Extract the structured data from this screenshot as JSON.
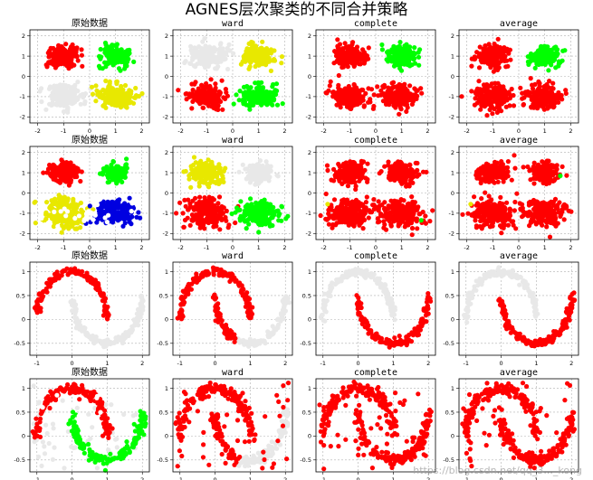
{
  "figure": {
    "title": "AGNES层次聚类的不同合并策略",
    "watermark": "https://blog.csdn.net/qq_3..._kong"
  },
  "colors": {
    "gray": "#e8e8e8",
    "red": "#ff0000",
    "green": "#00ff00",
    "yellow": "#e8e800",
    "blue": "#0000e0",
    "white": "#ffffff",
    "grid": "#b0b0b0"
  },
  "chart_data": [
    {
      "type": "scatter",
      "title": "原始数据",
      "xlim": [
        -2.3,
        2.3
      ],
      "ylim": [
        -2.3,
        2.3
      ],
      "xticks": [
        -2,
        -1,
        0,
        1,
        2
      ],
      "yticks": [
        -2,
        -1,
        0,
        1,
        2
      ],
      "grid": true,
      "series": [
        {
          "color": "gray",
          "shape": "blob",
          "center": [
            -1,
            -1
          ],
          "spread": [
            0.35,
            0.3
          ],
          "count": 180
        },
        {
          "color": "yellow",
          "shape": "blob",
          "center": [
            1,
            -1
          ],
          "spread": [
            0.35,
            0.28
          ],
          "count": 180
        },
        {
          "color": "red",
          "shape": "blob",
          "center": [
            -1,
            1
          ],
          "spread": [
            0.3,
            0.25
          ],
          "count": 180
        },
        {
          "color": "green",
          "shape": "blob",
          "center": [
            1,
            1
          ],
          "spread": [
            0.28,
            0.25
          ],
          "count": 180
        }
      ]
    },
    {
      "type": "scatter",
      "title": "ward",
      "xlim": [
        -2.3,
        2.3
      ],
      "ylim": [
        -2.3,
        2.3
      ],
      "xticks": [
        -2,
        -1,
        0,
        1,
        2
      ],
      "yticks": [
        -2,
        -1,
        0,
        1,
        2
      ],
      "grid": true,
      "series": [
        {
          "color": "gray",
          "shape": "blob",
          "center": [
            -1,
            1
          ],
          "spread": [
            0.35,
            0.28
          ],
          "count": 180
        },
        {
          "color": "yellow",
          "shape": "blob",
          "center": [
            1,
            1
          ],
          "spread": [
            0.28,
            0.25
          ],
          "count": 180
        },
        {
          "color": "red",
          "shape": "blob",
          "center": [
            -1,
            -1
          ],
          "spread": [
            0.35,
            0.3
          ],
          "count": 180
        },
        {
          "color": "green",
          "shape": "blob",
          "center": [
            1,
            -1
          ],
          "spread": [
            0.35,
            0.28
          ],
          "count": 180
        }
      ]
    },
    {
      "type": "scatter",
      "title": "complete",
      "xlim": [
        -2.3,
        2.3
      ],
      "ylim": [
        -2.3,
        2.3
      ],
      "xticks": [
        -2,
        -1,
        0,
        1,
        2
      ],
      "yticks": [
        -2,
        -1,
        0,
        1,
        2
      ],
      "grid": true,
      "series": [
        {
          "color": "red",
          "shape": "blob",
          "center": [
            -1,
            1
          ],
          "spread": [
            0.3,
            0.25
          ],
          "count": 180
        },
        {
          "color": "green",
          "shape": "blob",
          "center": [
            1,
            1
          ],
          "spread": [
            0.28,
            0.25
          ],
          "count": 180
        },
        {
          "color": "red",
          "shape": "blob",
          "center": [
            -1,
            -1
          ],
          "spread": [
            0.35,
            0.3
          ],
          "count": 180
        },
        {
          "color": "red",
          "shape": "blob",
          "center": [
            1,
            -1
          ],
          "spread": [
            0.35,
            0.28
          ],
          "count": 180
        }
      ]
    },
    {
      "type": "scatter",
      "title": "average",
      "xlim": [
        -2.3,
        2.3
      ],
      "ylim": [
        -2.3,
        2.3
      ],
      "xticks": [
        -2,
        -1,
        0,
        1,
        2
      ],
      "yticks": [
        -2,
        -1,
        0,
        1,
        2
      ],
      "grid": true,
      "series": [
        {
          "color": "red",
          "shape": "blob",
          "center": [
            -1,
            1
          ],
          "spread": [
            0.3,
            0.25
          ],
          "count": 180
        },
        {
          "color": "green",
          "shape": "blob",
          "center": [
            1,
            1
          ],
          "spread": [
            0.28,
            0.25
          ],
          "count": 180
        },
        {
          "color": "red",
          "shape": "blob",
          "center": [
            -1,
            -1
          ],
          "spread": [
            0.35,
            0.3
          ],
          "count": 180
        },
        {
          "color": "red",
          "shape": "blob",
          "center": [
            1,
            -1
          ],
          "spread": [
            0.35,
            0.28
          ],
          "count": 180
        }
      ]
    },
    {
      "type": "scatter",
      "title": "原始数据",
      "xlim": [
        -2.3,
        2.3
      ],
      "ylim": [
        -2.3,
        2.3
      ],
      "xticks": [
        -2,
        -1,
        0,
        1,
        2
      ],
      "yticks": [
        -2,
        -1,
        0,
        1,
        2
      ],
      "grid": true,
      "series": [
        {
          "color": "yellow",
          "shape": "blob",
          "center": [
            -1,
            -1
          ],
          "spread": [
            0.4,
            0.35
          ],
          "count": 220
        },
        {
          "color": "blue",
          "shape": "blob",
          "center": [
            1,
            -1
          ],
          "spread": [
            0.38,
            0.3
          ],
          "count": 200
        },
        {
          "color": "red",
          "shape": "blob",
          "center": [
            -1,
            1
          ],
          "spread": [
            0.3,
            0.25
          ],
          "count": 150
        },
        {
          "color": "green",
          "shape": "blob",
          "center": [
            1,
            1
          ],
          "spread": [
            0.25,
            0.22
          ],
          "count": 130
        },
        {
          "color": "white",
          "shape": "blob",
          "center": [
            0,
            -1
          ],
          "spread": [
            1.1,
            0.35
          ],
          "count": 30
        }
      ]
    },
    {
      "type": "scatter",
      "title": "ward",
      "xlim": [
        -2.3,
        2.3
      ],
      "ylim": [
        -2.3,
        2.3
      ],
      "xticks": [
        -2,
        -1,
        0,
        1,
        2
      ],
      "yticks": [
        -2,
        -1,
        0,
        1,
        2
      ],
      "grid": true,
      "series": [
        {
          "color": "gray",
          "shape": "blob",
          "center": [
            1,
            1
          ],
          "spread": [
            0.28,
            0.25
          ],
          "count": 150
        },
        {
          "color": "yellow",
          "shape": "blob",
          "center": [
            -1,
            1
          ],
          "spread": [
            0.32,
            0.26
          ],
          "count": 170
        },
        {
          "color": "red",
          "shape": "blob",
          "center": [
            -1,
            -1
          ],
          "spread": [
            0.4,
            0.35
          ],
          "count": 220
        },
        {
          "color": "green",
          "shape": "blob",
          "center": [
            1,
            -1
          ],
          "spread": [
            0.38,
            0.32
          ],
          "count": 200
        }
      ]
    },
    {
      "type": "scatter",
      "title": "complete",
      "xlim": [
        -2.3,
        2.3
      ],
      "ylim": [
        -2.3,
        2.3
      ],
      "xticks": [
        -2,
        -1,
        0,
        1,
        2
      ],
      "yticks": [
        -2,
        -1,
        0,
        1,
        2
      ],
      "grid": true,
      "series": [
        {
          "color": "red",
          "shape": "blob",
          "center": [
            -1,
            1
          ],
          "spread": [
            0.32,
            0.26
          ],
          "count": 170
        },
        {
          "color": "red",
          "shape": "blob",
          "center": [
            1,
            1
          ],
          "spread": [
            0.28,
            0.25
          ],
          "count": 150
        },
        {
          "color": "red",
          "shape": "blob",
          "center": [
            -1,
            -1
          ],
          "spread": [
            0.4,
            0.35
          ],
          "count": 220
        },
        {
          "color": "red",
          "shape": "blob",
          "center": [
            1,
            -1
          ],
          "spread": [
            0.38,
            0.32
          ],
          "count": 200
        },
        {
          "color": "yellow",
          "shape": "points",
          "points": [
            [
              -1.85,
              -0.55
            ]
          ]
        },
        {
          "color": "green",
          "shape": "points",
          "points": [
            [
              1.75,
              -1.35
            ]
          ]
        }
      ]
    },
    {
      "type": "scatter",
      "title": "average",
      "xlim": [
        -2.3,
        2.3
      ],
      "ylim": [
        -2.3,
        2.3
      ],
      "xticks": [
        -2,
        -1,
        0,
        1,
        2
      ],
      "yticks": [
        -2,
        -1,
        0,
        1,
        2
      ],
      "grid": true,
      "series": [
        {
          "color": "red",
          "shape": "blob",
          "center": [
            -1,
            1
          ],
          "spread": [
            0.32,
            0.26
          ],
          "count": 170
        },
        {
          "color": "red",
          "shape": "blob",
          "center": [
            1,
            1
          ],
          "spread": [
            0.28,
            0.25
          ],
          "count": 150
        },
        {
          "color": "red",
          "shape": "blob",
          "center": [
            -1,
            -1
          ],
          "spread": [
            0.4,
            0.35
          ],
          "count": 220
        },
        {
          "color": "red",
          "shape": "blob",
          "center": [
            1,
            -1
          ],
          "spread": [
            0.38,
            0.32
          ],
          "count": 200
        },
        {
          "color": "yellow",
          "shape": "points",
          "points": [
            [
              -1.85,
              -0.55
            ]
          ]
        },
        {
          "color": "green",
          "shape": "points",
          "points": [
            [
              1.6,
              0.85
            ]
          ]
        }
      ]
    },
    {
      "type": "scatter",
      "title": "原始数据",
      "xlim": [
        -1.2,
        2.2
      ],
      "ylim": [
        -0.75,
        1.2
      ],
      "xticks": [
        -1,
        0,
        1,
        2
      ],
      "yticks": [
        -0.5,
        0.0,
        0.5,
        1.0
      ],
      "grid": true,
      "series": [
        {
          "color": "gray",
          "shape": "moon",
          "moon": "lower",
          "noise": 0.04,
          "count": 160
        },
        {
          "color": "red",
          "shape": "moon",
          "moon": "upper",
          "noise": 0.04,
          "count": 160
        }
      ]
    },
    {
      "type": "scatter",
      "title": "ward",
      "xlim": [
        -1.2,
        2.2
      ],
      "ylim": [
        -0.75,
        1.2
      ],
      "xticks": [
        -1,
        0,
        1,
        2
      ],
      "yticks": [
        -0.5,
        0.0,
        0.5,
        1.0
      ],
      "grid": true,
      "series": [
        {
          "color": "gray",
          "shape": "moon",
          "moon": "lower",
          "range": [
            0.35,
            1.0
          ],
          "noise": 0.04,
          "count": 100
        },
        {
          "color": "red",
          "shape": "moon",
          "moon": "upper",
          "noise": 0.04,
          "count": 160
        },
        {
          "color": "red",
          "shape": "moon",
          "moon": "lower",
          "range": [
            0.0,
            0.35
          ],
          "noise": 0.04,
          "count": 60
        }
      ]
    },
    {
      "type": "scatter",
      "title": "complete",
      "xlim": [
        -1.2,
        2.2
      ],
      "ylim": [
        -0.75,
        1.2
      ],
      "xticks": [
        -1,
        0,
        1,
        2
      ],
      "yticks": [
        -0.5,
        0.0,
        0.5,
        1.0
      ],
      "grid": true,
      "series": [
        {
          "color": "gray",
          "shape": "moon",
          "moon": "upper",
          "noise": 0.04,
          "count": 160
        },
        {
          "color": "red",
          "shape": "moon",
          "moon": "lower",
          "noise": 0.04,
          "count": 160
        }
      ]
    },
    {
      "type": "scatter",
      "title": "average",
      "xlim": [
        -1.2,
        2.2
      ],
      "ylim": [
        -0.75,
        1.2
      ],
      "xticks": [
        -1,
        0,
        1,
        2
      ],
      "yticks": [
        -0.5,
        0.0,
        0.5,
        1.0
      ],
      "grid": true,
      "series": [
        {
          "color": "gray",
          "shape": "moon",
          "moon": "upper",
          "noise": 0.04,
          "count": 160
        },
        {
          "color": "red",
          "shape": "moon",
          "moon": "lower",
          "noise": 0.04,
          "count": 160
        }
      ]
    },
    {
      "type": "scatter",
      "title": "原始数据",
      "xlim": [
        -1.2,
        2.2
      ],
      "ylim": [
        -0.75,
        1.2
      ],
      "xticks": [
        -1,
        0,
        1,
        2
      ],
      "yticks": [
        -0.5,
        0.0,
        0.5,
        1.0
      ],
      "grid": true,
      "series": [
        {
          "color": "gray",
          "shape": "uniform",
          "xrange": [
            -1.1,
            2.1
          ],
          "yrange": [
            -0.7,
            1.15
          ],
          "count": 55
        },
        {
          "color": "green",
          "shape": "moon",
          "moon": "lower",
          "noise": 0.06,
          "count": 160
        },
        {
          "color": "red",
          "shape": "moon",
          "moon": "upper",
          "noise": 0.06,
          "count": 160
        },
        {
          "color": "white",
          "shape": "uniform",
          "xrange": [
            -0.9,
            0.9
          ],
          "yrange": [
            0.3,
            1.05
          ],
          "count": 12
        }
      ]
    },
    {
      "type": "scatter",
      "title": "ward",
      "xlim": [
        -1.2,
        2.2
      ],
      "ylim": [
        -0.75,
        1.2
      ],
      "xticks": [
        -1,
        0,
        1,
        2
      ],
      "yticks": [
        -0.5,
        0.0,
        0.5,
        1.0
      ],
      "grid": true,
      "series": [
        {
          "color": "gray",
          "shape": "moon",
          "moon": "lower",
          "range": [
            0.4,
            1.0
          ],
          "noise": 0.06,
          "count": 90
        },
        {
          "color": "red",
          "shape": "moon",
          "moon": "upper",
          "noise": 0.06,
          "count": 160
        },
        {
          "color": "red",
          "shape": "moon",
          "moon": "lower",
          "range": [
            0.0,
            0.4
          ],
          "noise": 0.06,
          "count": 70
        },
        {
          "color": "red",
          "shape": "uniform",
          "xrange": [
            -1.1,
            2.1
          ],
          "yrange": [
            -0.7,
            1.15
          ],
          "count": 50
        }
      ]
    },
    {
      "type": "scatter",
      "title": "complete",
      "xlim": [
        -1.2,
        2.2
      ],
      "ylim": [
        -0.75,
        1.2
      ],
      "xticks": [
        -1,
        0,
        1,
        2
      ],
      "yticks": [
        -0.5,
        0.0,
        0.5,
        1.0
      ],
      "grid": true,
      "series": [
        {
          "color": "red",
          "shape": "moon",
          "moon": "upper",
          "noise": 0.06,
          "count": 160
        },
        {
          "color": "red",
          "shape": "moon",
          "moon": "lower",
          "noise": 0.06,
          "count": 160
        },
        {
          "color": "red",
          "shape": "uniform",
          "xrange": [
            -1.1,
            2.1
          ],
          "yrange": [
            -0.7,
            1.15
          ],
          "count": 55
        }
      ]
    },
    {
      "type": "scatter",
      "title": "average",
      "xlim": [
        -1.2,
        2.2
      ],
      "ylim": [
        -0.75,
        1.2
      ],
      "xticks": [
        -1,
        0,
        1,
        2
      ],
      "yticks": [
        -0.5,
        0.0,
        0.5,
        1.0
      ],
      "grid": true,
      "series": [
        {
          "color": "red",
          "shape": "moon",
          "moon": "upper",
          "noise": 0.06,
          "count": 160
        },
        {
          "color": "red",
          "shape": "moon",
          "moon": "lower",
          "noise": 0.06,
          "count": 160
        },
        {
          "color": "red",
          "shape": "uniform",
          "xrange": [
            -1.1,
            2.1
          ],
          "yrange": [
            -0.7,
            1.15
          ],
          "count": 55
        }
      ]
    }
  ]
}
